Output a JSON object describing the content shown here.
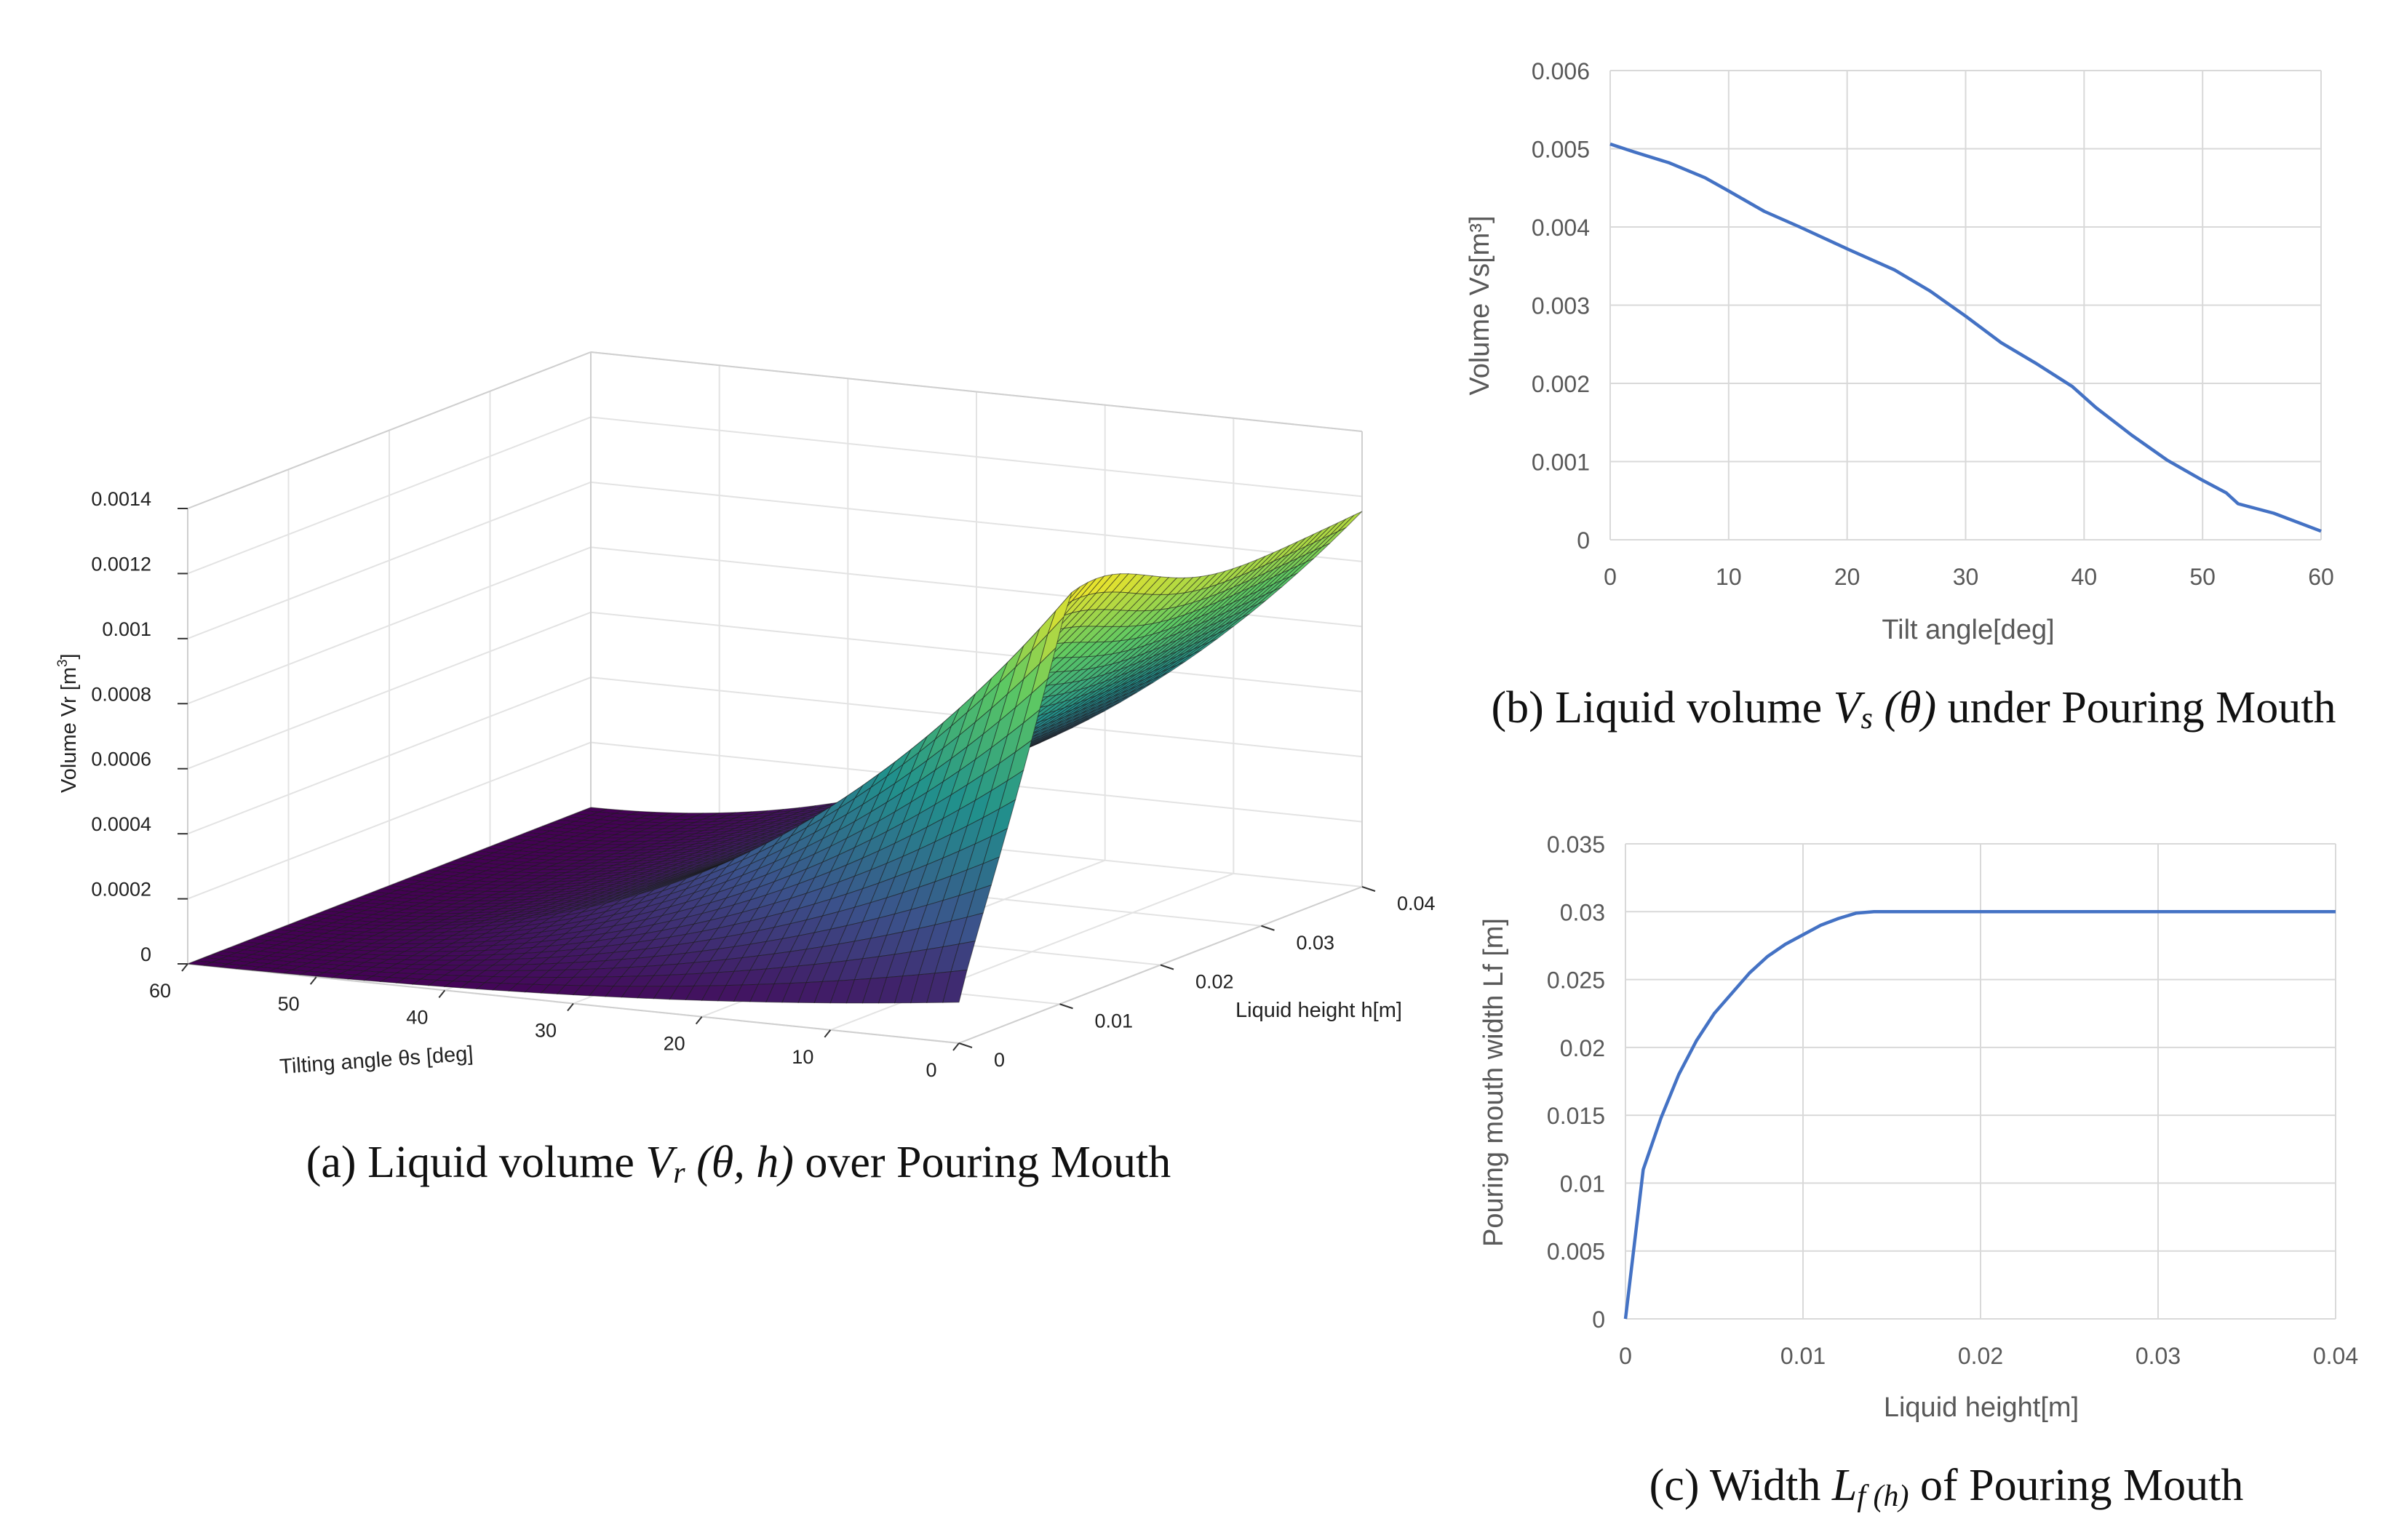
{
  "chart_data": [
    {
      "type": "surface",
      "panel": "a",
      "caption_prefix": "(a) Liquid volume",
      "caption_sym": "V",
      "caption_sub": "r",
      "caption_args": "(θ, h)",
      "caption_suffix": "over Pouring Mouth",
      "xlabel": "Tilting angle θs [deg]",
      "ylabel": "Liquid height h[m]",
      "zlabel_main": "Volume Vr [m",
      "zlabel_exp": "3",
      "zlabel_close": "]",
      "x_ticks": [
        "60",
        "50",
        "40",
        "30",
        "20",
        "10",
        "0"
      ],
      "x_range": [
        0,
        60
      ],
      "y_ticks": [
        "0",
        "0.01",
        "0.02",
        "0.03",
        "0.04"
      ],
      "y_range": [
        0,
        0.04
      ],
      "z_ticks": [
        "0",
        "0.0002",
        "0.0004",
        "0.0006",
        "0.0008",
        "0.001",
        "0.0012",
        "0.0014"
      ],
      "z_range": [
        0,
        0.0014
      ],
      "peak_value": 0.00128,
      "peak_at": {
        "theta": 0,
        "h": 0.013
      },
      "value_at_max_h": {
        "theta": 0,
        "h": 0.04,
        "value": 0.00115
      },
      "colormap": [
        "#440154",
        "#3b528b",
        "#21918c",
        "#5ec962",
        "#fde725"
      ]
    },
    {
      "type": "line",
      "panel": "b",
      "caption_prefix": "(b) Liquid volume",
      "caption_sym": "V",
      "caption_sub": "s",
      "caption_args": "(θ)",
      "caption_suffix": "under Pouring Mouth",
      "xlabel": "Tilt angle[deg]",
      "ylabel": "Volume Vs[m³]",
      "x_ticks": [
        "0",
        "10",
        "20",
        "30",
        "40",
        "50",
        "60"
      ],
      "y_ticks": [
        "0",
        "0.001",
        "0.002",
        "0.003",
        "0.004",
        "0.005",
        "0.006"
      ],
      "xlim": [
        0,
        60
      ],
      "ylim": [
        0,
        0.006
      ],
      "grid": true,
      "series": [
        {
          "name": "Vs",
          "color": "#4472c4",
          "x": [
            0,
            2,
            5,
            8,
            10,
            13,
            16,
            20,
            24,
            27,
            30,
            33,
            36,
            39,
            41,
            44,
            47,
            50,
            52,
            53,
            56,
            60
          ],
          "y": [
            0.00506,
            0.00496,
            0.00482,
            0.00463,
            0.00446,
            0.0042,
            0.004,
            0.00372,
            0.00345,
            0.00318,
            0.00286,
            0.00252,
            0.00225,
            0.00196,
            0.00169,
            0.00134,
            0.00102,
            0.00076,
            0.0006,
            0.00046,
            0.00034,
            0.00011
          ]
        }
      ]
    },
    {
      "type": "line",
      "panel": "c",
      "caption_prefix": "(c) Width",
      "caption_sym": "L",
      "caption_sub": "f (h)",
      "caption_suffix": "of Pouring Mouth",
      "xlabel": "Liquid height[m]",
      "ylabel": "Pouring mouth width Lf [m]",
      "x_ticks": [
        "0",
        "0.01",
        "0.02",
        "0.03",
        "0.04"
      ],
      "y_ticks": [
        "0",
        "0.005",
        "0.01",
        "0.015",
        "0.02",
        "0.025",
        "0.03",
        "0.035"
      ],
      "xlim": [
        0,
        0.04
      ],
      "ylim": [
        0,
        0.035
      ],
      "grid": true,
      "series": [
        {
          "name": "Lf",
          "color": "#4472c4",
          "x": [
            0,
            0.001,
            0.002,
            0.003,
            0.004,
            0.005,
            0.006,
            0.007,
            0.008,
            0.009,
            0.01,
            0.011,
            0.012,
            0.013,
            0.014,
            0.02,
            0.03,
            0.04
          ],
          "y": [
            0,
            0.011,
            0.0148,
            0.018,
            0.0205,
            0.0225,
            0.024,
            0.0255,
            0.0267,
            0.0276,
            0.0283,
            0.029,
            0.0295,
            0.0299,
            0.03,
            0.03,
            0.03,
            0.03
          ]
        }
      ]
    }
  ]
}
